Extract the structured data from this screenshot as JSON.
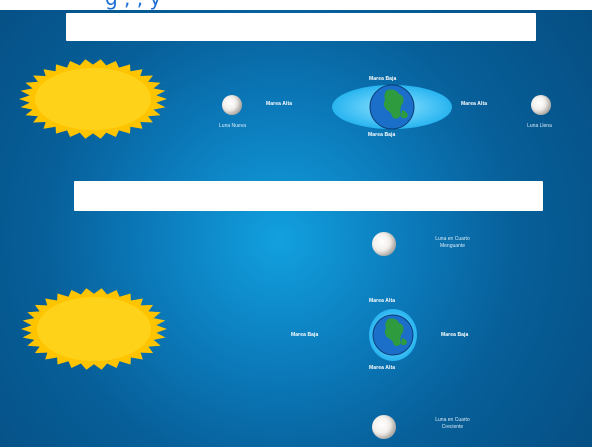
{
  "header": {
    "cropped_title_fragment": "g   , ,   y"
  },
  "panel_top": {
    "title_box_text": "",
    "earth_labels": {
      "top": "Marea Baja",
      "bottom": "Marea Baja",
      "left": "Marea Alta",
      "right": "Marea Alta"
    },
    "moon_left_label": "Luna Nueva",
    "moon_right_label": "Luna Llena"
  },
  "panel_bottom": {
    "title_box_text": "",
    "earth_labels": {
      "top": "Marea Alta",
      "bottom": "Marea Alta",
      "left": "Marea Baja",
      "right": "Marea Baja"
    },
    "moon_top_label_line1": "Luna en Cuarto",
    "moon_top_label_line2": "Menguante",
    "moon_bottom_label_line1": "Luna en Cuarto",
    "moon_bottom_label_line2": "Creciente"
  },
  "colors": {
    "sun": "#ffc400",
    "sun_core": "#ffd21a",
    "ocean": "#1e88e5",
    "land": "#2e9b3e",
    "bulge": "#5fd0ff"
  }
}
